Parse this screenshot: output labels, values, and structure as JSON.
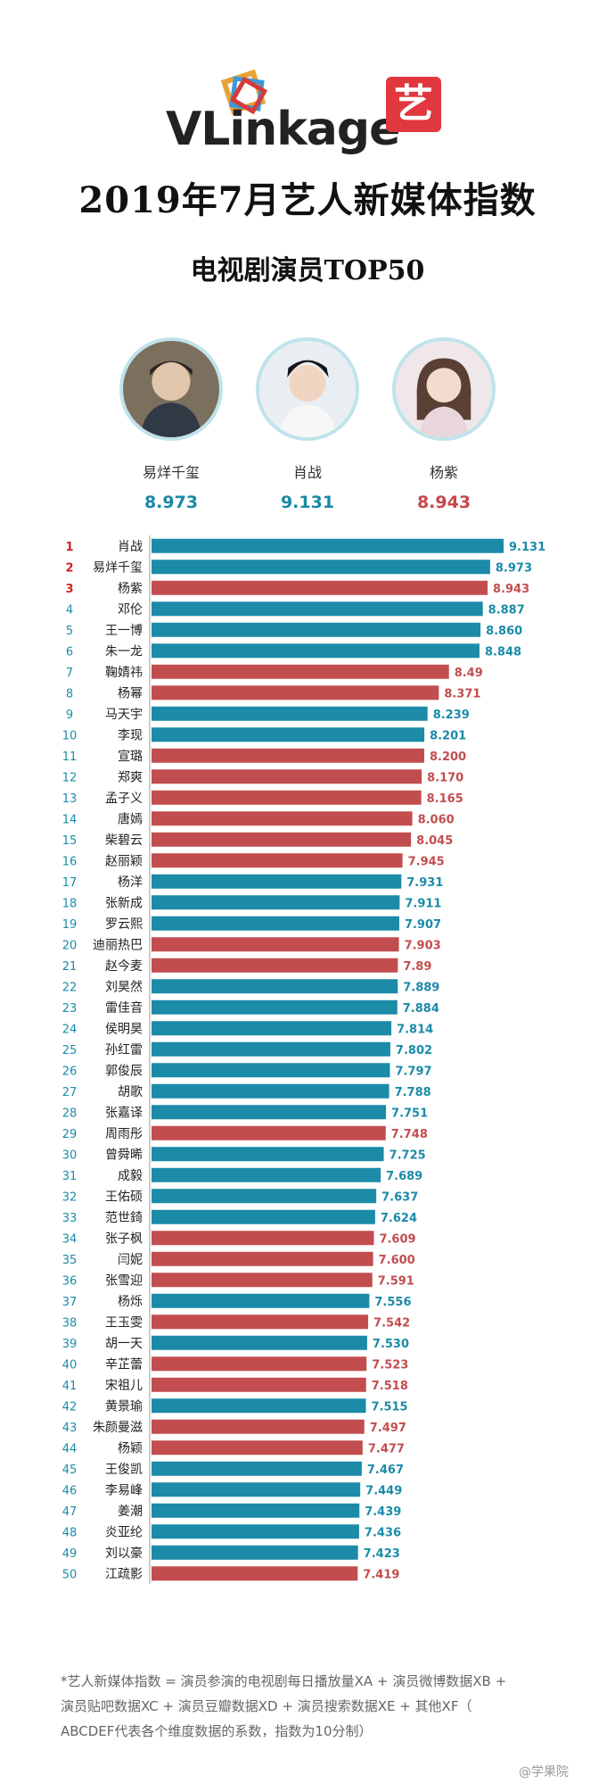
{
  "header": {
    "logo_text": "VLinkage",
    "yi_char": "艺",
    "title": "2019年7月艺人新媒体指数",
    "subtitle": "电视剧演员TOP50"
  },
  "top3": [
    {
      "name": "易烊千玺",
      "value": "8.973",
      "color": "#1a88a6"
    },
    {
      "name": "肖战",
      "value": "9.131",
      "color": "#1a88a6"
    },
    {
      "name": "杨紫",
      "value": "8.943",
      "color": "#c9464a"
    }
  ],
  "colors": {
    "male": "#1b8ba8",
    "female": "#c24d4f",
    "rank_top": "#d41f24",
    "rank": "#1b8ba8"
  },
  "chart_data": {
    "type": "bar",
    "orientation": "horizontal",
    "title": "电视剧演员TOP50",
    "xlim": [
      0,
      9.131
    ],
    "categories": [
      "肖战",
      "易烊千玺",
      "杨紫",
      "邓伦",
      "王一博",
      "朱一龙",
      "鞠婧祎",
      "杨幂",
      "马天宇",
      "李现",
      "宣璐",
      "郑爽",
      "孟子义",
      "唐嫣",
      "柴碧云",
      "赵丽颖",
      "杨洋",
      "张新成",
      "罗云熙",
      "迪丽热巴",
      "赵今麦",
      "刘昊然",
      "雷佳音",
      "侯明昊",
      "孙红雷",
      "郭俊辰",
      "胡歌",
      "张嘉译",
      "周雨彤",
      "曾舜晞",
      "成毅",
      "王佑硕",
      "范世錡",
      "张子枫",
      "闫妮",
      "张雪迎",
      "杨烁",
      "王玉雯",
      "胡一天",
      "辛芷蕾",
      "宋祖儿",
      "黄景瑜",
      "朱颜曼滋",
      "杨颖",
      "王俊凯",
      "李易峰",
      "姜潮",
      "炎亚纶",
      "刘以豪",
      "江疏影"
    ],
    "values": [
      9.131,
      8.973,
      8.943,
      8.887,
      8.86,
      8.848,
      8.49,
      8.371,
      8.239,
      8.201,
      8.2,
      8.17,
      8.165,
      8.06,
      8.045,
      7.945,
      7.931,
      7.911,
      7.907,
      7.903,
      7.89,
      7.889,
      7.884,
      7.814,
      7.802,
      7.797,
      7.788,
      7.751,
      7.748,
      7.725,
      7.689,
      7.637,
      7.624,
      7.609,
      7.6,
      7.591,
      7.556,
      7.542,
      7.53,
      7.523,
      7.518,
      7.515,
      7.497,
      7.477,
      7.467,
      7.449,
      7.439,
      7.436,
      7.423,
      7.419
    ],
    "labels": [
      "9.131",
      "8.973",
      "8.943",
      "8.887",
      "8.860",
      "8.848",
      "8.49",
      "8.371",
      "8.239",
      "8.201",
      "8.200",
      "8.170",
      "8.165",
      "8.060",
      "8.045",
      "7.945",
      "7.931",
      "7.911",
      "7.907",
      "7.903",
      "7.89",
      "7.889",
      "7.884",
      "7.814",
      "7.802",
      "7.797",
      "7.788",
      "7.751",
      "7.748",
      "7.725",
      "7.689",
      "7.637",
      "7.624",
      "7.609",
      "7.600",
      "7.591",
      "7.556",
      "7.542",
      "7.530",
      "7.523",
      "7.518",
      "7.515",
      "7.497",
      "7.477",
      "7.467",
      "7.449",
      "7.439",
      "7.436",
      "7.423",
      "7.419"
    ],
    "gender": [
      "m",
      "m",
      "f",
      "m",
      "m",
      "m",
      "f",
      "f",
      "m",
      "m",
      "f",
      "f",
      "f",
      "f",
      "f",
      "f",
      "m",
      "m",
      "m",
      "f",
      "f",
      "m",
      "m",
      "m",
      "m",
      "m",
      "m",
      "m",
      "f",
      "m",
      "m",
      "m",
      "m",
      "f",
      "f",
      "f",
      "m",
      "f",
      "m",
      "f",
      "f",
      "m",
      "f",
      "f",
      "m",
      "m",
      "m",
      "m",
      "m",
      "f"
    ]
  },
  "footnote": {
    "line1": "*艺人新媒体指数 = 演员参演的电视剧每日播放量XA + 演员微博数据XB +",
    "line2": "演员贴吧数据XC + 演员豆瓣数据XD + 演员搜索数据XE + 其他XF（",
    "line3": "ABCDEF代表各个维度数据的系数，指数为10分制）"
  },
  "watermark": "@学果院"
}
